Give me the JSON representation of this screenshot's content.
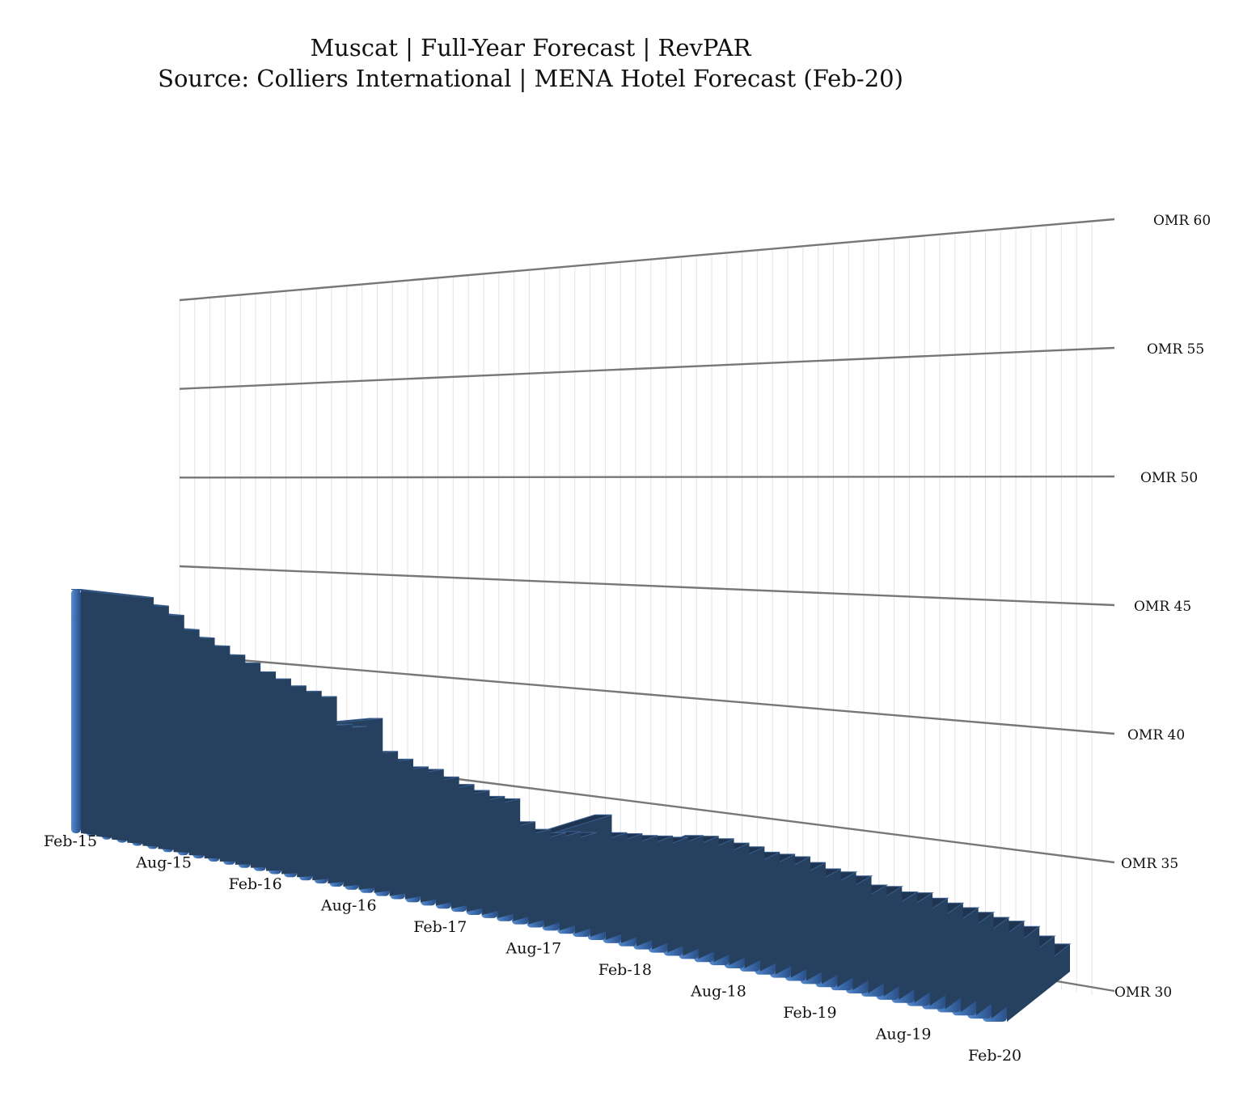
{
  "chart_data": {
    "type": "bar",
    "title": "Muscat | Full-Year Forecast | RevPAR",
    "subtitle": "Source: Colliers International | MENA Hotel Forecast (Feb-20)",
    "xlabel": "",
    "ylabel": "",
    "ylim": [
      30,
      60
    ],
    "ytick_values": [
      30,
      35,
      40,
      45,
      50,
      55,
      60
    ],
    "ytick_labels": [
      "OMR 30",
      "OMR 35",
      "OMR 40",
      "OMR 45",
      "OMR 50",
      "OMR 55",
      "OMR 60"
    ],
    "grid": true,
    "legend": "none",
    "bar_color": "#3e6fb0",
    "bar_top_color": "#1f3450",
    "categories": [
      "Feb-15",
      "Mar-15",
      "Apr-15",
      "May-15",
      "Jun-15",
      "Jul-15",
      "Aug-15",
      "Sep-15",
      "Oct-15",
      "Nov-15",
      "Dec-15",
      "Jan-16",
      "Feb-16",
      "Mar-16",
      "Apr-16",
      "May-16",
      "Jun-16",
      "Jul-16",
      "Aug-16",
      "Sep-16",
      "Oct-16",
      "Nov-16",
      "Dec-16",
      "Jan-17",
      "Feb-17",
      "Mar-17",
      "Apr-17",
      "May-17",
      "Jun-17",
      "Jul-17",
      "Aug-17",
      "Sep-17",
      "Oct-17",
      "Nov-17",
      "Dec-17",
      "Jan-18",
      "Feb-18",
      "Mar-18",
      "Apr-18",
      "May-18",
      "Jun-18",
      "Jul-18",
      "Aug-18",
      "Sep-18",
      "Oct-18",
      "Nov-18",
      "Dec-18",
      "Jan-19",
      "Feb-19",
      "Mar-19",
      "Apr-19",
      "May-19",
      "Jun-19",
      "Jul-19",
      "Aug-19",
      "Sep-19",
      "Oct-19",
      "Nov-19",
      "Dec-19",
      "Jan-20",
      "Feb-20"
    ],
    "x_labels": [
      "Feb-15",
      "Aug-15",
      "Feb-16",
      "Aug-16",
      "Feb-17",
      "Aug-17",
      "Feb-18",
      "Aug-18",
      "Feb-19",
      "Aug-19",
      "Feb-20"
    ],
    "series": [
      {
        "values": [
          56.8,
          56.3,
          55.7,
          54.5,
          54.0,
          53.5,
          52.9,
          52.4,
          51.8,
          51.4,
          51.0,
          50.8,
          50.6,
          47.5,
          47.7,
          49.2,
          45.3,
          44.7,
          44.1,
          44.2,
          43.6,
          43.0,
          42.6,
          42.2,
          42.3,
          39.4,
          38.7,
          38.6,
          39.2,
          39.5,
          42.7,
          40.4,
          40.7,
          40.9,
          41.3,
          41.6,
          42.4,
          42.8,
          42.9,
          42.7,
          42.6,
          42.2,
          42.4,
          42.5,
          42.0,
          41.4,
          41.4,
          41.2,
          40.0,
          40.3,
          39.8,
          40.2,
          39.7,
          39.3,
          38.9,
          38.5,
          38.0,
          37.8,
          37.2,
          35.6,
          34.3
        ]
      }
    ]
  }
}
